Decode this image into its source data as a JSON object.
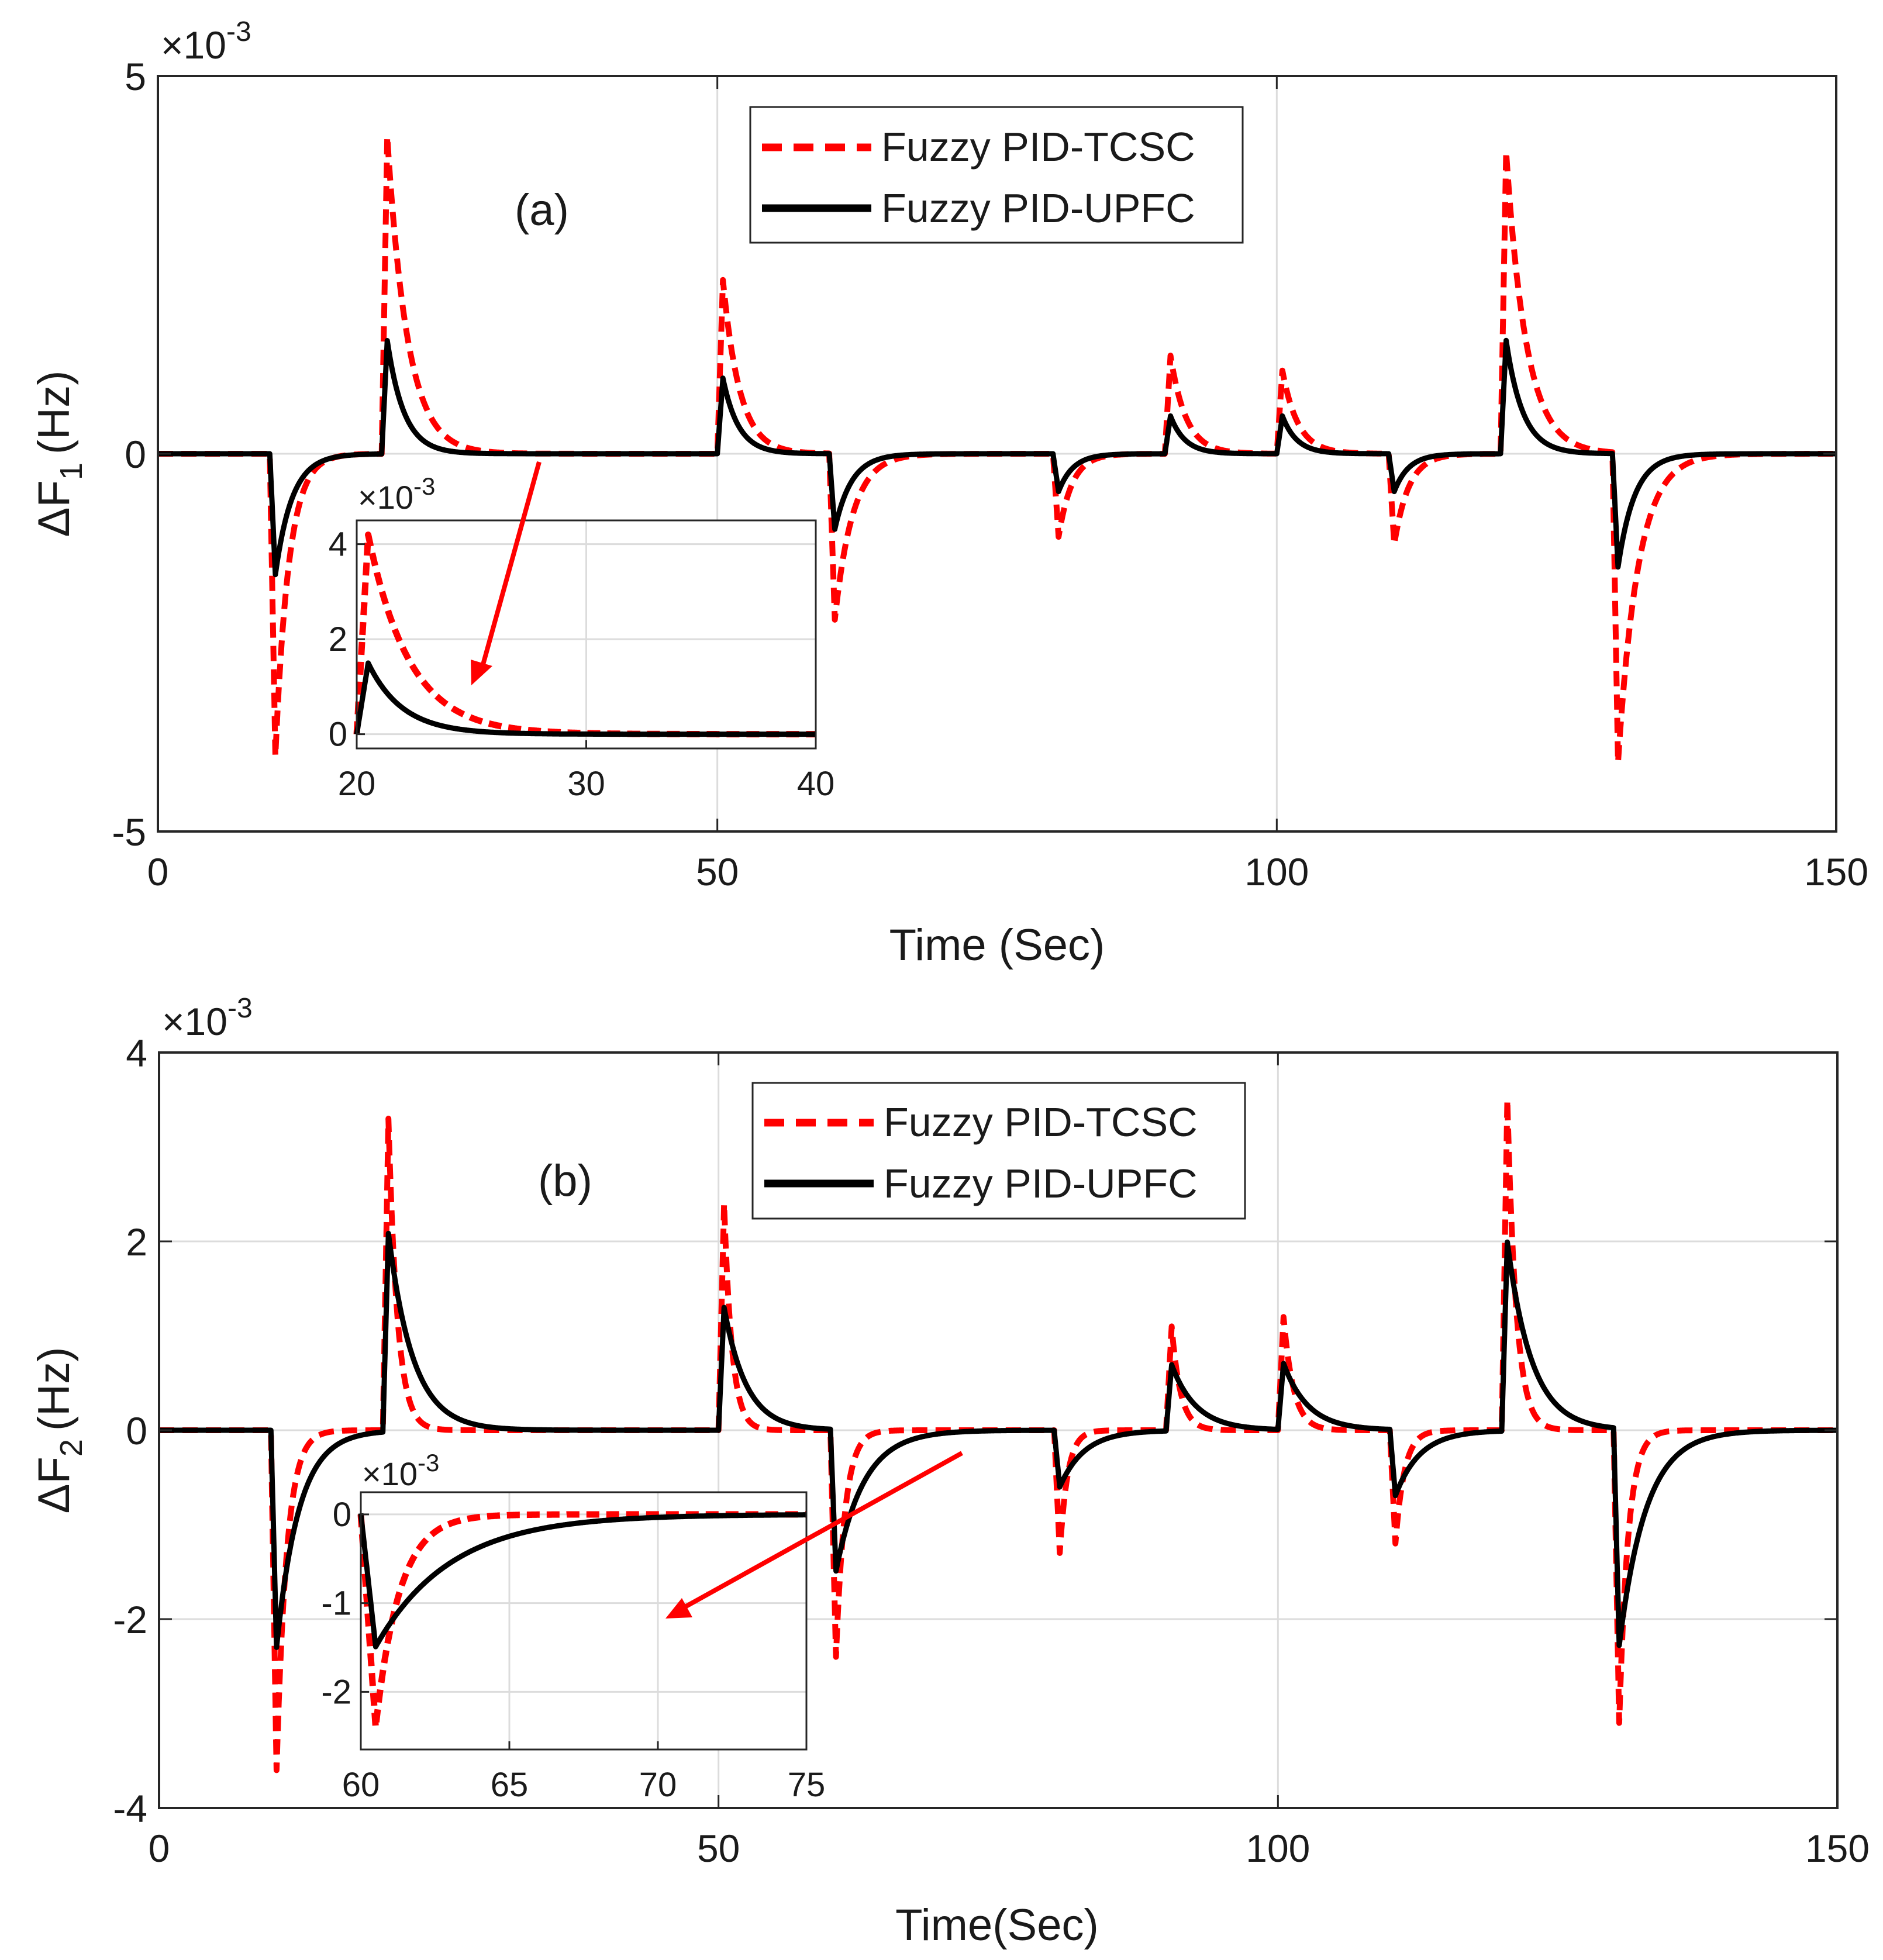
{
  "colors": {
    "tcsc": "#ff0000",
    "upfc": "#000000",
    "grid": "#dcdcdc",
    "axis": "#262626",
    "arrow": "#ff0000"
  },
  "chart_data": [
    {
      "type": "line",
      "panel_label": "(a)",
      "title": "",
      "xlabel": "Time (Sec)",
      "ylabel_main": "ΔF",
      "ylabel_sub": "1",
      "ylabel_unit": "(Hz)",
      "exponent_base": "×10",
      "exponent_power": "-3",
      "xlim": [
        0,
        150
      ],
      "ylim": [
        -5,
        5
      ],
      "xticks": [
        "0",
        "50",
        "100",
        "150"
      ],
      "yticks": [
        "-5",
        "0",
        "5"
      ],
      "grid": true,
      "legend_position": "top-center",
      "series": [
        {
          "name": "Fuzzy PID-TCSC",
          "style": "dashed",
          "events": [
            [
              10,
              -4.0,
              1.2
            ],
            [
              20,
              4.2,
              1.8
            ],
            [
              50,
              2.3,
              1.5
            ],
            [
              60,
              -2.2,
              1.6
            ],
            [
              80,
              -1.1,
              1.2
            ],
            [
              90,
              1.3,
              1.4
            ],
            [
              100,
              1.1,
              1.4
            ],
            [
              110,
              -1.2,
              1.3
            ],
            [
              120,
              4.0,
              1.8
            ],
            [
              130,
              -4.1,
              1.8
            ]
          ]
        },
        {
          "name": "Fuzzy PID-UPFC",
          "style": "solid",
          "events": [
            [
              10,
              -1.6,
              1.5
            ],
            [
              20,
              1.5,
              1.5
            ],
            [
              50,
              1.0,
              1.4
            ],
            [
              60,
              -1.0,
              1.5
            ],
            [
              80,
              -0.5,
              1.3
            ],
            [
              90,
              0.5,
              1.3
            ],
            [
              100,
              0.5,
              1.3
            ],
            [
              110,
              -0.5,
              1.3
            ],
            [
              120,
              1.5,
              1.5
            ],
            [
              130,
              -1.5,
              1.5
            ]
          ]
        }
      ],
      "inset": {
        "xlim": [
          20,
          40
        ],
        "ylim": [
          -0.3,
          4.5
        ],
        "xticks": [
          "20",
          "30",
          "40"
        ],
        "yticks": [
          "0",
          "2",
          "4"
        ],
        "exponent_base": "×10",
        "exponent_power": "-3"
      }
    },
    {
      "type": "line",
      "panel_label": "(b)",
      "title": "",
      "xlabel": "Time(Sec)",
      "ylabel_main": "ΔF",
      "ylabel_sub": "2",
      "ylabel_unit": "(Hz)",
      "exponent_base": "×10",
      "exponent_power": "-3",
      "xlim": [
        0,
        150
      ],
      "ylim": [
        -4,
        4
      ],
      "xticks": [
        "0",
        "50",
        "100",
        "150"
      ],
      "yticks": [
        "-4",
        "-2",
        "0",
        "2",
        "4"
      ],
      "grid": true,
      "legend_position": "top-center",
      "series": [
        {
          "name": "Fuzzy PID-TCSC",
          "style": "dashed",
          "events": [
            [
              10,
              -3.6,
              0.9
            ],
            [
              20,
              3.3,
              0.8
            ],
            [
              50,
              2.4,
              0.7
            ],
            [
              60,
              -2.4,
              0.8
            ],
            [
              80,
              -1.3,
              0.7
            ],
            [
              90,
              1.1,
              0.8
            ],
            [
              100,
              1.2,
              0.9
            ],
            [
              110,
              -1.2,
              0.8
            ],
            [
              120,
              3.5,
              0.8
            ],
            [
              130,
              -3.1,
              0.8
            ]
          ]
        },
        {
          "name": "Fuzzy PID-UPFC",
          "style": "solid",
          "events": [
            [
              10,
              -2.3,
              2.0
            ],
            [
              20,
              2.1,
              2.2
            ],
            [
              50,
              1.3,
              2.0
            ],
            [
              60,
              -1.5,
              2.5
            ],
            [
              80,
              -0.6,
              2.2
            ],
            [
              90,
              0.7,
              2.2
            ],
            [
              100,
              0.7,
              2.2
            ],
            [
              110,
              -0.7,
              2.2
            ],
            [
              120,
              2.0,
              2.2
            ],
            [
              130,
              -2.3,
              2.4
            ]
          ]
        }
      ],
      "inset": {
        "xlim": [
          60,
          75
        ],
        "ylim": [
          -2.65,
          0.25
        ],
        "xticks": [
          "60",
          "65",
          "70",
          "75"
        ],
        "yticks": [
          "0",
          "-1",
          "-2"
        ],
        "exponent_base": "×10",
        "exponent_power": "-3"
      }
    }
  ]
}
